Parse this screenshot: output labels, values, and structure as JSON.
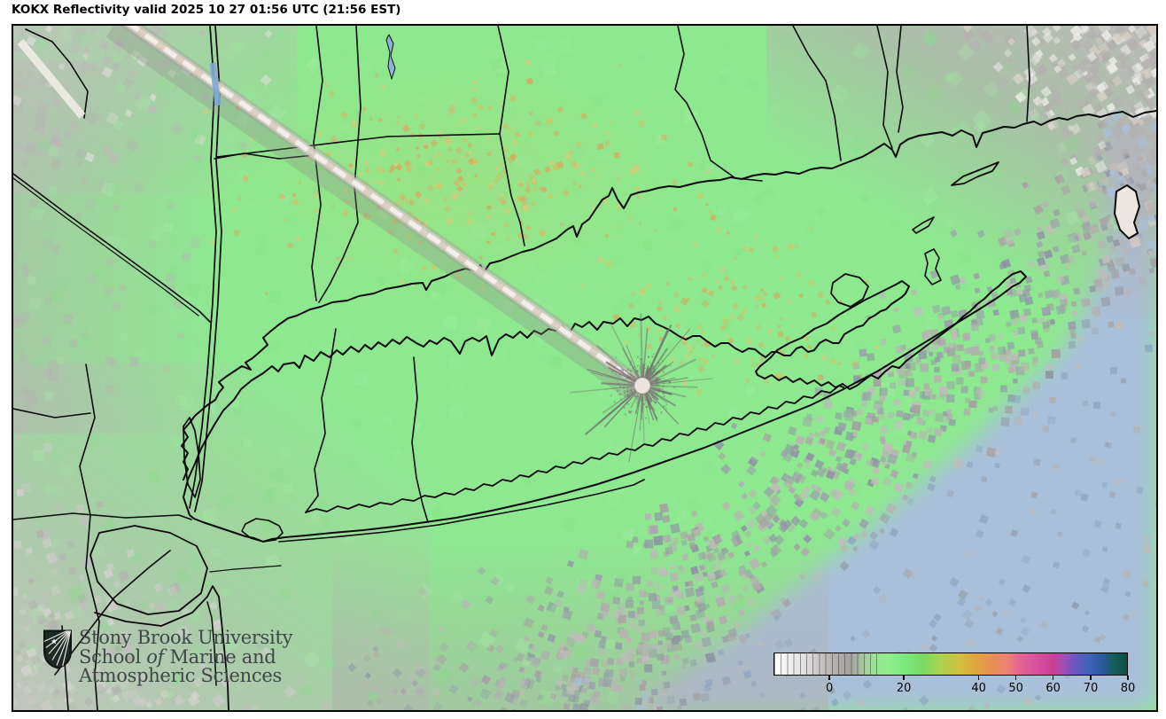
{
  "title": "KOKX Reflectivity valid 2025 10 27 01:56 UTC (21:56 EST)",
  "branding": {
    "org": "Stony Brook University",
    "school_prefix": "School ",
    "school_italic": "of",
    "school_suffix": " Marine and",
    "dept": "Atmospheric Sciences"
  },
  "colorbar": {
    "ticks": [
      {
        "label": "0",
        "pos": 0.158
      },
      {
        "label": "20",
        "pos": 0.368
      },
      {
        "label": "40",
        "pos": 0.579
      },
      {
        "label": "50",
        "pos": 0.684
      },
      {
        "label": "60",
        "pos": 0.789
      },
      {
        "label": "70",
        "pos": 0.895
      },
      {
        "label": "80",
        "pos": 1.0
      }
    ],
    "stops": [
      [
        0.0,
        "#ffffff"
      ],
      [
        0.08,
        "#e4e2e2"
      ],
      [
        0.16,
        "#b8b4b4"
      ],
      [
        0.21,
        "#a6a2a2"
      ],
      [
        0.24,
        "#a8b8a6"
      ],
      [
        0.27,
        "#9fdc97"
      ],
      [
        0.32,
        "#8fee8f"
      ],
      [
        0.37,
        "#7ee87e"
      ],
      [
        0.42,
        "#79da63"
      ],
      [
        0.47,
        "#a8d44e"
      ],
      [
        0.52,
        "#cfc23e"
      ],
      [
        0.57,
        "#dfa83c"
      ],
      [
        0.62,
        "#e88d55"
      ],
      [
        0.66,
        "#ec8272"
      ],
      [
        0.69,
        "#e4688e"
      ],
      [
        0.74,
        "#d9529d"
      ],
      [
        0.79,
        "#cc3e96"
      ],
      [
        0.82,
        "#a050b4"
      ],
      [
        0.85,
        "#7055c0"
      ],
      [
        0.89,
        "#3f63b5"
      ],
      [
        0.93,
        "#2a5a9a"
      ],
      [
        0.96,
        "#14605e"
      ],
      [
        1.0,
        "#0b4e44"
      ]
    ]
  },
  "map_colors": {
    "echo_green": "#8de88f",
    "ocean_blue": "#a9c0da",
    "clutter_gray": "#b5b1b1",
    "noise_yellow": "#d2bc62",
    "boundary_black": "#0a0a0a",
    "radar_dot": "#ece5df",
    "spike_core": "#f4f0ea"
  }
}
